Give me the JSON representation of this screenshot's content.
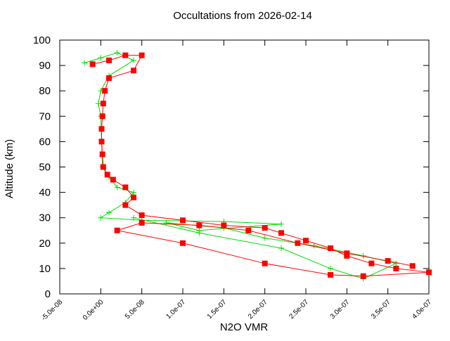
{
  "chart_data": {
    "type": "profile",
    "title": "Occultations from 2026-02-14",
    "xlabel": "N2O VMR",
    "ylabel": "Altitude (km)",
    "xlim": [
      -5e-08,
      4e-07
    ],
    "ylim": [
      0,
      100
    ],
    "xticks": [
      {
        "value": -5e-08,
        "label": "-5.0e-08"
      },
      {
        "value": 0,
        "label": "0.0e+00"
      },
      {
        "value": 5e-08,
        "label": "5.0e-08"
      },
      {
        "value": 1e-07,
        "label": "1.0e-07"
      },
      {
        "value": 1.5e-07,
        "label": "1.5e-07"
      },
      {
        "value": 2e-07,
        "label": "2.0e-07"
      },
      {
        "value": 2.5e-07,
        "label": "2.5e-07"
      },
      {
        "value": 3e-07,
        "label": "3.0e-07"
      },
      {
        "value": 3.5e-07,
        "label": "3.5e-07"
      },
      {
        "value": 4e-07,
        "label": "4.0e-07"
      }
    ],
    "yticks": [
      0,
      10,
      20,
      30,
      40,
      50,
      60,
      70,
      80,
      90,
      100
    ],
    "series": [
      {
        "color": "#00dd00",
        "marker": "plus",
        "x": [
          -2e-08,
          0,
          2e-08,
          4e-08,
          1e-08,
          0,
          -3e-09,
          0,
          1e-09,
          2e-09,
          1e-08,
          2e-08,
          4e-08,
          3e-08,
          1e-08,
          0,
          5e-08,
          1.5e-07,
          2.2e-07,
          1.2e-07,
          8e-08,
          1.5e-07,
          2e-07,
          2.6e-07,
          3.2e-07,
          3.6e-07,
          3.2e-07,
          2.8e-07,
          2.2e-07,
          1.2e-07,
          4e-08
        ],
        "values": [
          91,
          93,
          95,
          92,
          86,
          80,
          75,
          70,
          60,
          50,
          46,
          42,
          40,
          36,
          32,
          30,
          29,
          28.5,
          27.5,
          25,
          28,
          26,
          22,
          19,
          15,
          12,
          6,
          10,
          18,
          24,
          30
        ]
      },
      {
        "color": "#ff0000",
        "marker": "square",
        "x": [
          -1e-08,
          1e-08,
          3e-08,
          5e-08,
          4e-08,
          1e-08,
          5e-09,
          3e-09,
          2e-09,
          1e-09,
          1e-09,
          2e-09,
          3e-09,
          8e-09,
          1.5e-08,
          3e-08,
          4e-08,
          3e-08,
          5e-08,
          1e-07,
          1.5e-07,
          2e-07,
          2.2e-07,
          2.5e-07,
          2.8e-07,
          3e-07,
          3.3e-07,
          3.6e-07,
          4e-07,
          3.2e-07,
          2.8e-07,
          2e-07,
          1e-07,
          2e-08,
          5e-08,
          1.2e-07,
          1.8e-07,
          2.4e-07,
          3e-07,
          3.5e-07,
          3.8e-07
        ],
        "values": [
          90.5,
          92,
          94,
          94,
          88,
          85,
          80,
          75,
          70,
          65,
          60,
          55,
          50,
          47,
          45,
          42,
          38,
          35,
          31,
          29,
          27,
          26,
          24,
          21,
          18,
          15,
          12,
          10,
          8.5,
          7,
          7.5,
          12,
          20,
          25,
          28,
          27,
          25,
          20,
          16,
          13,
          11
        ]
      }
    ]
  }
}
